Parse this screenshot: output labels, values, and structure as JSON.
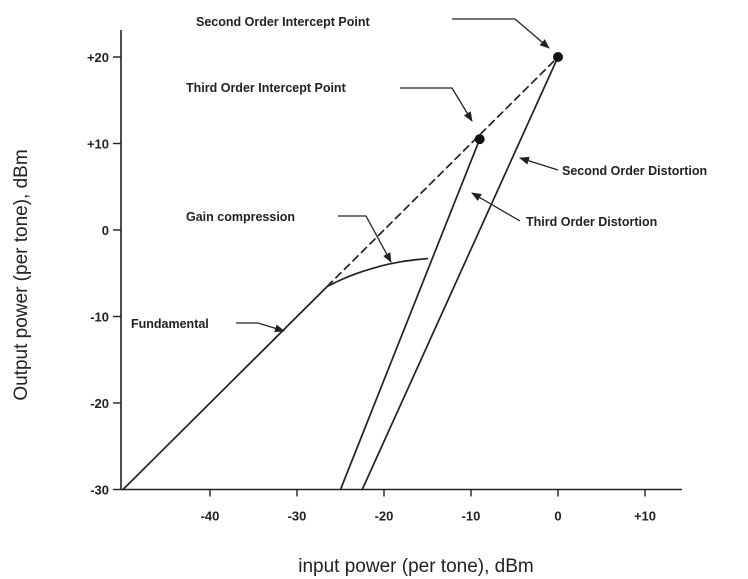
{
  "chart_data": {
    "type": "line",
    "title": "",
    "xlabel": "input power (per tone), dBm",
    "ylabel": "Output power (per tone), dBm",
    "xlim": [
      -50,
      15
    ],
    "ylim": [
      -30,
      25
    ],
    "x_ticks": [
      -40,
      -30,
      -20,
      -10,
      0,
      10
    ],
    "x_tick_labels": [
      "-40",
      "-30",
      "-20",
      "-10",
      "0",
      "+10"
    ],
    "y_ticks": [
      -30,
      -20,
      -10,
      0,
      10,
      20
    ],
    "y_tick_labels": [
      "-30",
      "-20",
      "-10",
      "0",
      "+10",
      "+20"
    ],
    "grid": false,
    "series": [
      {
        "x": [
          -50,
          -26.5
        ],
        "y": [
          -30,
          -6.5
        ],
        "style": "solid"
      },
      {
        "x": [
          -26.5,
          -24,
          -21,
          -18,
          -15
        ],
        "y": [
          -6.5,
          -5.3,
          -4.3,
          -3.6,
          -3.3
        ],
        "style": "solid"
      },
      {
        "x": [
          -26.5,
          0
        ],
        "y": [
          -6.5,
          20
        ],
        "style": "dashed"
      },
      {
        "x": [
          -25,
          -9
        ],
        "y": [
          -30,
          10.5
        ],
        "style": "solid"
      },
      {
        "x": [
          -22.5,
          0
        ],
        "y": [
          -30,
          20
        ],
        "style": "solid"
      }
    ],
    "points": [
      {
        "x": 0,
        "y": 20
      },
      {
        "x": -9,
        "y": 10.5
      }
    ],
    "annotations": [
      {
        "text": "Second Order Intercept Point",
        "x": 0,
        "y": 20
      },
      {
        "text": "Third Order Intercept Point",
        "x": -9,
        "y": 10.5
      },
      {
        "text": "Second Order Distortion",
        "x": -4.5,
        "y": 10
      },
      {
        "text": "Third Order Distortion",
        "x": -10.5,
        "y": 5
      },
      {
        "text": "Gain compression",
        "x": -19,
        "y": -3.8
      },
      {
        "text": "Fundamental",
        "x": -33.5,
        "y": -11.5
      }
    ]
  }
}
